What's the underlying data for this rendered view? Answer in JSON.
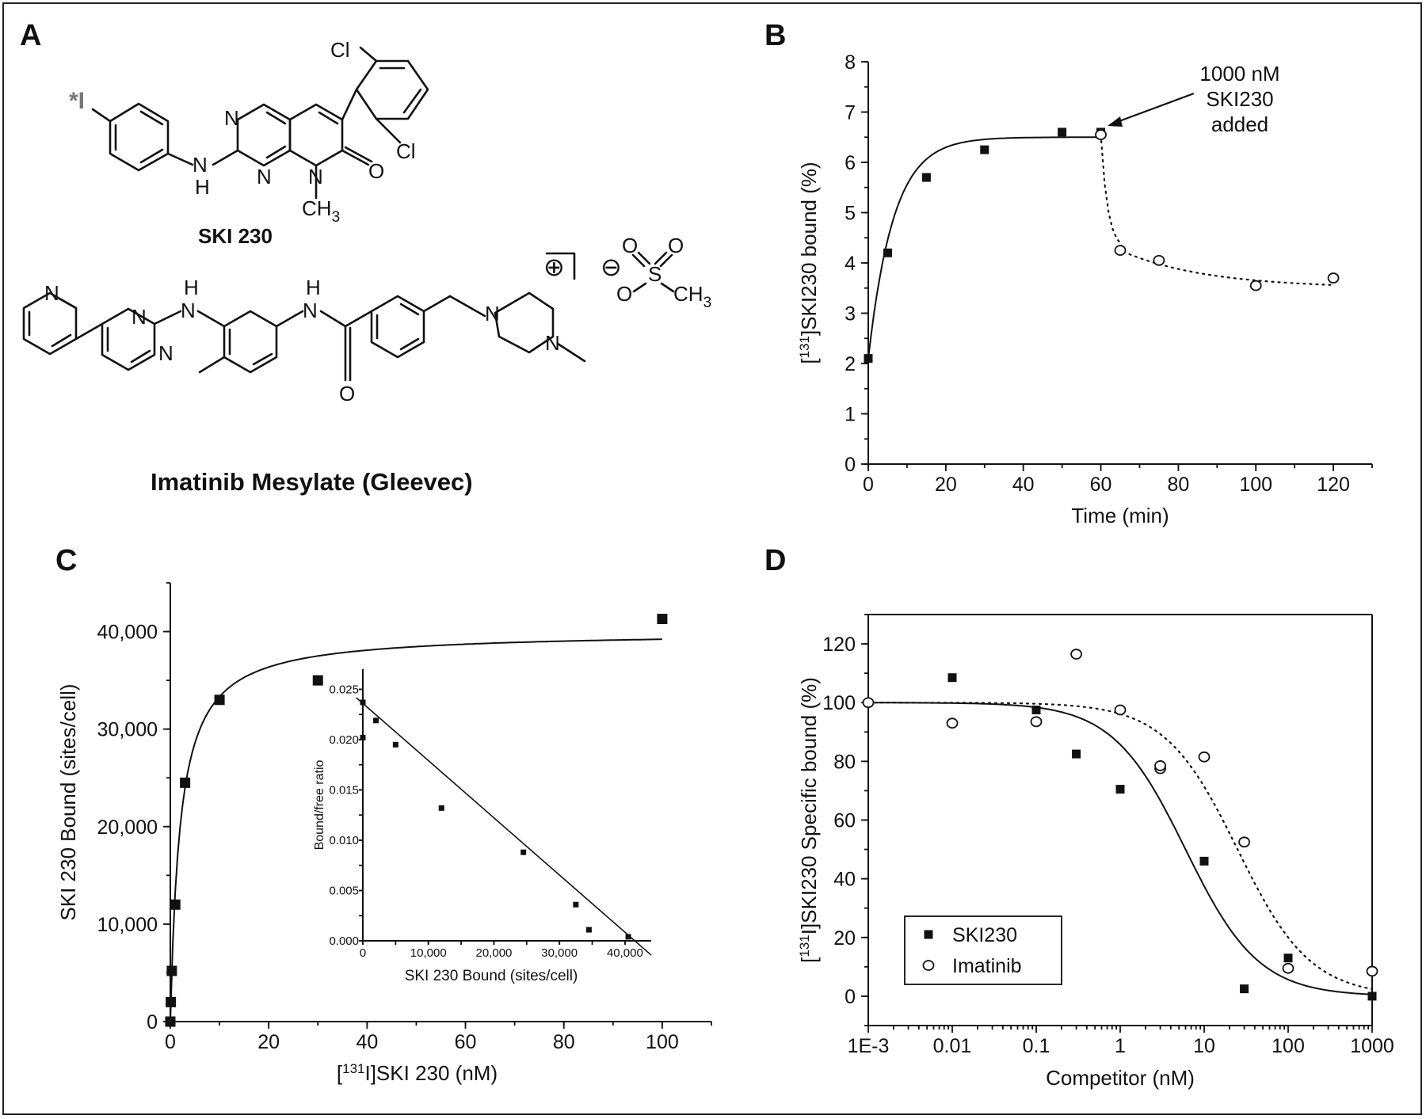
{
  "panels": {
    "A": {
      "letter": "A",
      "compound1": {
        "name": "SKI 230",
        "iodine_label": "*I",
        "atoms": {
          "cl_top": "Cl",
          "cl_bottom": "Cl",
          "n1": "N",
          "n2": "N",
          "n3": "N",
          "nh_n": "N",
          "nh_h": "H",
          "o": "O",
          "ch3": "CH",
          "ch3_sub": "3"
        }
      },
      "compound2": {
        "name": "Imatinib Mesylate (Gleevec)",
        "atoms": {
          "n_pyr": "N",
          "n_pm1": "N",
          "n_pm2": "N",
          "nh1_h": "H",
          "nh1_n": "N",
          "nh2_h": "H",
          "nh2_n": "N",
          "o": "O",
          "n_pip1": "N",
          "n_pip2": "N",
          "plus": "⊕",
          "minus": "⊖",
          "ms_s": "S",
          "ms_o1": "O",
          "ms_o2": "O",
          "ms_o3": "O",
          "ms_ch3": "CH",
          "ms_ch3_sub": "3"
        }
      }
    },
    "B": {
      "letter": "B",
      "annotation": [
        "1000 nM",
        "SKI230",
        "added"
      ]
    },
    "C": {
      "letter": "C"
    },
    "D": {
      "letter": "D"
    }
  },
  "chart_data": [
    {
      "panel": "B",
      "type": "scatter",
      "xlabel": "Time (min)",
      "ylabel_parts": [
        "[",
        "131",
        "]SKI230 bound (%)"
      ],
      "xlim": [
        0,
        130
      ],
      "ylim": [
        0,
        8
      ],
      "xticks": [
        0,
        20,
        40,
        60,
        80,
        100,
        120
      ],
      "yticks": [
        0,
        1,
        2,
        3,
        4,
        5,
        6,
        7,
        8
      ],
      "grid": false,
      "series": [
        {
          "marker": "filled-square",
          "fit": "solid",
          "x": [
            0,
            5,
            15,
            30,
            50,
            60
          ],
          "y": [
            2.1,
            4.2,
            5.7,
            6.25,
            6.6,
            6.6
          ]
        },
        {
          "marker": "open-circle",
          "fit": "dotted",
          "x": [
            60,
            65,
            75,
            100,
            120
          ],
          "y": [
            6.55,
            4.25,
            4.05,
            3.55,
            3.7
          ]
        }
      ],
      "annotation": {
        "text": [
          "1000 nM",
          "SKI230",
          "added"
        ],
        "points_to": [
          60,
          6.55
        ]
      }
    },
    {
      "panel": "C",
      "type": "scatter",
      "xlabel_parts": [
        "[",
        "131",
        "I]SKI 230 (nM)"
      ],
      "ylabel": "SKI 230 Bound (sites/cell)",
      "xlim": [
        0,
        110
      ],
      "ylim": [
        0,
        45000
      ],
      "xticks": [
        0,
        20,
        40,
        60,
        80,
        100
      ],
      "yticks": [
        0,
        10000,
        20000,
        30000,
        40000
      ],
      "ytick_labels": [
        "0",
        "10,000",
        "20,000",
        "30,000",
        "40,000"
      ],
      "grid": false,
      "series": [
        {
          "marker": "filled-square",
          "fit": "solid",
          "x": [
            0,
            0.1,
            0.3,
            1,
            3,
            10,
            30,
            100
          ],
          "y": [
            0,
            2000,
            5200,
            12000,
            24500,
            33000,
            35000,
            41300
          ]
        }
      ]
    },
    {
      "panel": "C-inset",
      "type": "scatter",
      "xlabel": "SKI 230 Bound (sites/cell)",
      "ylabel": "Bound/free ratio",
      "xlim": [
        0,
        44000
      ],
      "ylim": [
        0,
        0.027
      ],
      "xticks": [
        0,
        10000,
        20000,
        30000,
        40000
      ],
      "xtick_labels": [
        "0",
        "10,000",
        "20,000",
        "30,000",
        "40,000"
      ],
      "yticks": [
        0,
        0.005,
        0.01,
        0.015,
        0.02,
        0.025
      ],
      "ytick_labels": [
        "0.000",
        "0.005",
        "0.010",
        "0.015",
        "0.020",
        "0.025"
      ],
      "series": [
        {
          "marker": "filled-square",
          "fit": "solid-linear",
          "x": [
            0,
            0,
            2000,
            5000,
            12000,
            24500,
            32500,
            34500,
            40500
          ],
          "y": [
            0.0237,
            0.0202,
            0.0219,
            0.0195,
            0.0132,
            0.0088,
            0.0036,
            0.0011,
            0.0004
          ]
        }
      ]
    },
    {
      "panel": "D",
      "type": "scatter",
      "xscale": "log",
      "xlabel": "Competitor (nM)",
      "ylabel_parts": [
        "[",
        "131",
        "I]SKI230 Specific bound (%)"
      ],
      "xlim": [
        0.001,
        1000
      ],
      "ylim": [
        -10,
        130
      ],
      "xticks": [
        0.001,
        0.01,
        0.1,
        1,
        10,
        100,
        1000
      ],
      "xtick_labels": [
        "1E-3",
        "0.01",
        "0.1",
        "1",
        "10",
        "100",
        "1000"
      ],
      "yticks": [
        0,
        20,
        40,
        60,
        80,
        100,
        120
      ],
      "grid": false,
      "legend": "bottom-left",
      "series": [
        {
          "name": "SKI230",
          "marker": "filled-square",
          "fit": "solid",
          "x": [
            0.01,
            0.1,
            0.3,
            1,
            10,
            30,
            100,
            1000
          ],
          "y": [
            108.5,
            97.5,
            82.5,
            70.5,
            46,
            2.5,
            13,
            0
          ]
        },
        {
          "name": "Imatinib",
          "marker": "open-circle",
          "fit": "dotted",
          "x": [
            0.001,
            0.01,
            0.1,
            0.3,
            1,
            3,
            3,
            10,
            30,
            100,
            1000
          ],
          "y": [
            100,
            93,
            93.5,
            116.5,
            97.5,
            77.5,
            78.5,
            81.5,
            52.5,
            9.5,
            8.5
          ]
        }
      ]
    }
  ]
}
